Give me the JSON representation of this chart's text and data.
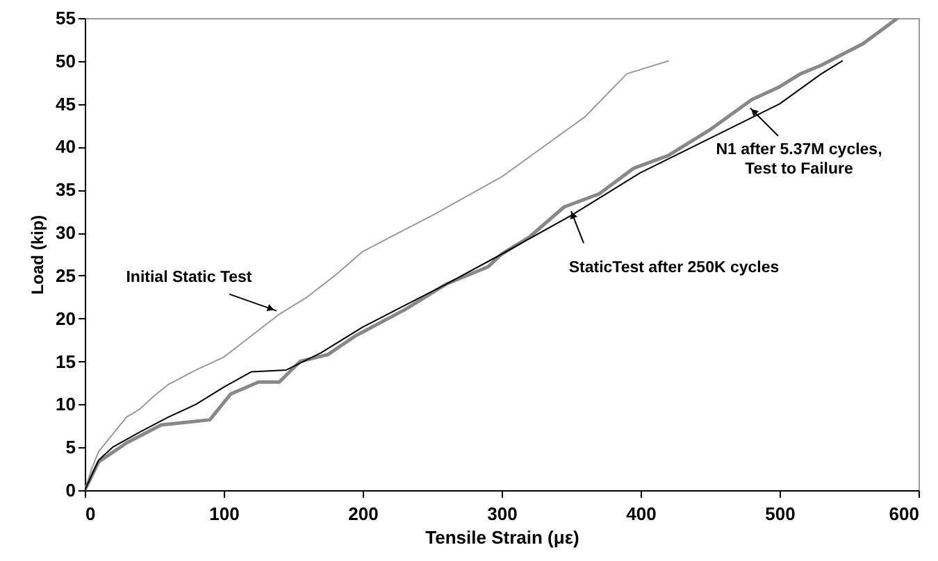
{
  "chart_data": {
    "type": "line",
    "xlabel": "Tensile Strain (με)",
    "ylabel": "Load (kip)",
    "xlim": [
      0,
      600
    ],
    "xticks": [
      0,
      100,
      200,
      300,
      400,
      500,
      600
    ],
    "ylim": [
      0,
      55
    ],
    "yticks": [
      0,
      5,
      10,
      15,
      20,
      25,
      30,
      35,
      40,
      45,
      50,
      55
    ],
    "grid": false,
    "marker": "none",
    "line_style": "solid",
    "series": [
      {
        "color": "#999999",
        "x": [
          0,
          5,
          10,
          20,
          30,
          40,
          50,
          60,
          80,
          100,
          120,
          140,
          160,
          180,
          200,
          220,
          250,
          270,
          300,
          330,
          360,
          390,
          420
        ],
        "values": [
          0,
          2.5,
          4.5,
          6.5,
          8.5,
          9.5,
          11,
          12.3,
          14,
          15.5,
          18,
          20.5,
          22.5,
          25,
          27.8,
          29.5,
          32,
          33.8,
          36.5,
          40,
          43.5,
          48.5,
          50
        ]
      },
      {
        "color": "#888888",
        "x": [
          0,
          10,
          30,
          55,
          90,
          105,
          125,
          140,
          155,
          175,
          195,
          230,
          260,
          290,
          300,
          320,
          345,
          370,
          395,
          420,
          450,
          480,
          500,
          515,
          530,
          560,
          585
        ],
        "values": [
          0,
          3.3,
          5.5,
          7.6,
          8.2,
          11.2,
          12.6,
          12.6,
          15,
          15.8,
          18,
          21,
          24,
          26,
          27.5,
          29.5,
          33,
          34.5,
          37.5,
          39,
          42,
          45.5,
          47,
          48.5,
          49.5,
          52,
          55
        ]
      },
      {
        "color": "#000000",
        "x": [
          0,
          10,
          20,
          40,
          60,
          80,
          100,
          120,
          145,
          170,
          200,
          230,
          260,
          300,
          350,
          400,
          450,
          500,
          530,
          545
        ],
        "values": [
          0,
          3.5,
          5,
          6.8,
          8.5,
          10,
          12,
          13.8,
          14,
          16,
          19,
          21.5,
          24,
          27.5,
          32,
          37,
          41,
          45,
          48.5,
          50
        ]
      }
    ],
    "annotations": [
      {
        "text": "Initial Static Test",
        "x": 138,
        "y": 20.9
      },
      {
        "text": "StaticTest after 250K cycles",
        "x": 350,
        "y": 32.5
      },
      {
        "text": "N1 after 5.37M cycles,\nTest to Failure",
        "x": 479,
        "y": 44.5
      }
    ]
  }
}
